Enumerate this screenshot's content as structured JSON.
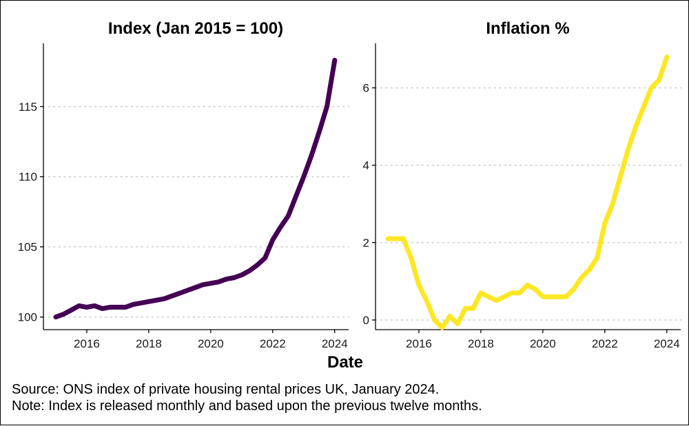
{
  "caption": {
    "source": "Source: ONS index of private housing rental prices UK, January 2024.",
    "note": "Note: Index is released monthly and based upon the previous twelve months."
  },
  "chart_data": [
    {
      "type": "line",
      "title": "Index (Jan 2015 = 100)",
      "xlabel": "Date",
      "ylabel": "",
      "color": "#440154",
      "xlim": [
        2014.6,
        2024.45
      ],
      "ylim": [
        99.1,
        119.5
      ],
      "xticks": [
        2016,
        2018,
        2020,
        2022,
        2024
      ],
      "yticks": [
        100,
        105,
        110,
        115
      ],
      "grid": "horizontal-dotted",
      "x": [
        2015.0,
        2015.25,
        2015.5,
        2015.75,
        2016.0,
        2016.25,
        2016.5,
        2016.75,
        2017.0,
        2017.25,
        2017.5,
        2017.75,
        2018.0,
        2018.25,
        2018.5,
        2018.75,
        2019.0,
        2019.25,
        2019.5,
        2019.75,
        2020.0,
        2020.25,
        2020.5,
        2020.75,
        2021.0,
        2021.25,
        2021.5,
        2021.75,
        2022.0,
        2022.25,
        2022.5,
        2022.75,
        2023.0,
        2023.25,
        2023.5,
        2023.75,
        2024.0
      ],
      "values": [
        100.0,
        100.2,
        100.5,
        100.8,
        100.7,
        100.8,
        100.6,
        100.7,
        100.7,
        100.7,
        100.9,
        101.0,
        101.1,
        101.2,
        101.3,
        101.5,
        101.7,
        101.9,
        102.1,
        102.3,
        102.4,
        102.5,
        102.7,
        102.8,
        103.0,
        103.3,
        103.7,
        104.2,
        105.5,
        106.4,
        107.2,
        108.6,
        110.0,
        111.5,
        113.2,
        115.0,
        118.3
      ]
    },
    {
      "type": "line",
      "title": "Inflation %",
      "xlabel": "Date",
      "ylabel": "",
      "color": "#fde725",
      "xlim": [
        2014.6,
        2024.45
      ],
      "ylim": [
        -0.25,
        7.15
      ],
      "xticks": [
        2016,
        2018,
        2020,
        2022,
        2024
      ],
      "yticks": [
        0,
        2,
        4,
        6
      ],
      "grid": "horizontal-dotted",
      "x": [
        2015.0,
        2015.25,
        2015.5,
        2015.75,
        2016.0,
        2016.25,
        2016.5,
        2016.75,
        2017.0,
        2017.25,
        2017.5,
        2017.75,
        2018.0,
        2018.25,
        2018.5,
        2018.75,
        2019.0,
        2019.25,
        2019.5,
        2019.75,
        2020.0,
        2020.25,
        2020.5,
        2020.75,
        2021.0,
        2021.25,
        2021.5,
        2021.75,
        2022.0,
        2022.25,
        2022.5,
        2022.75,
        2023.0,
        2023.25,
        2023.5,
        2023.75,
        2024.0
      ],
      "values": [
        2.1,
        2.1,
        2.1,
        1.6,
        0.9,
        0.5,
        0.0,
        -0.2,
        0.1,
        -0.1,
        0.3,
        0.3,
        0.7,
        0.6,
        0.5,
        0.6,
        0.7,
        0.7,
        0.9,
        0.8,
        0.6,
        0.6,
        0.6,
        0.6,
        0.8,
        1.1,
        1.3,
        1.6,
        2.5,
        3.0,
        3.7,
        4.4,
        5.0,
        5.5,
        6.0,
        6.2,
        6.8
      ]
    }
  ]
}
